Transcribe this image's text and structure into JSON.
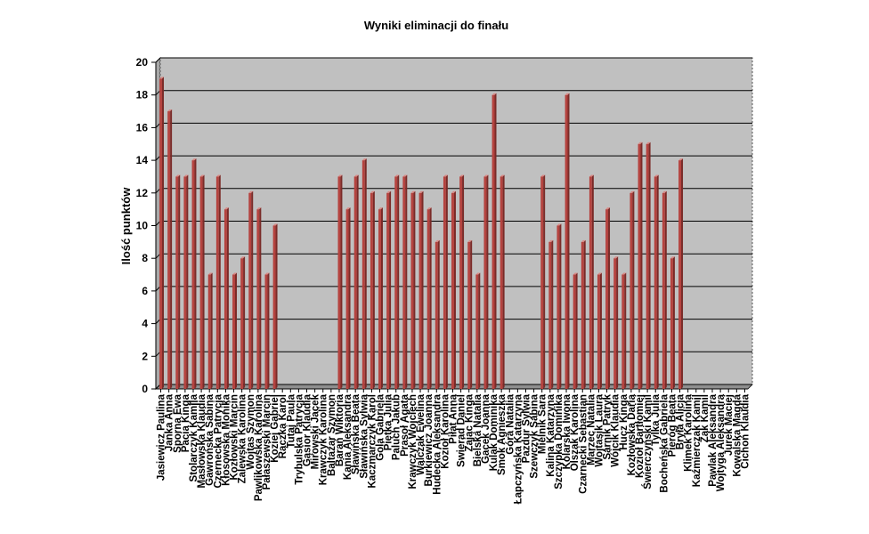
{
  "chart_data": {
    "type": "bar",
    "title": "Wyniki  eliminacji  do  finału",
    "xlabel": "",
    "ylabel": "Ilość punktów",
    "ylim": [
      0,
      20
    ],
    "yticks": [
      0,
      2,
      4,
      6,
      8,
      10,
      12,
      14,
      16,
      18,
      20
    ],
    "grid": true,
    "legend": "none",
    "colors": {
      "bar": "#b5433f",
      "bar_light": "#d88a86",
      "plot_bg": "#c0c0c0"
    },
    "categories": [
      "Jasiewicz Paulina",
      "Janka Anna",
      "Sporna Ewa",
      "Pacia Kinga",
      "Stolarczyk Kamila",
      "Masłowska Klaudia",
      "Gawrońska Sabina",
      "Czernecka Patrycja",
      "Kłosowska Monika",
      "Kozłowski Marcin",
      "Zalewska Karolina",
      "Wojtas Szymon",
      "Pawlikowska Karolina",
      "Pałaszewski Marcin",
      "Koziej Gabriel",
      "Rączka Karol",
      "Tutaj Paula",
      "Trybulska Patrycja",
      "Gąsior Klaudia",
      "Mirowski Jacek",
      "Krawczyk Karolina",
      "Baltazar Szymon",
      "Barań Wiktoria",
      "Kania Aleksandra",
      "Sławińska Beata",
      "Sławińska Sylwia",
      "Kaczmarczyk Karol",
      "Gola Gabriela",
      "Piętka Julia",
      "Paluch Jakub",
      "Prasoł Agata",
      "Krawczyk Wojciech",
      "Walczak Ewelina",
      "Burkiewicz Joanna",
      "Hudecka Aleksandra",
      "Kozioł Karolina",
      "Piłat Anna",
      "Swierad Daniel",
      "Zając Kinga",
      "Bielska Natalia",
      "Gacek Joanna",
      "Kulak Dominika",
      "Smok Agnieszka",
      "Góra Natalia",
      "Łapczyńska Katarzyna",
      "Pazdur Sylwia",
      "Szewczyk Sabina",
      "Mielnik Sara",
      "Kalina Katarzyna",
      "Szczypka Dominika",
      "Kolarska Iwona",
      "Olszak Karolina",
      "Czarnecki Sebastian",
      "Marzec Natalia",
      "Wojtasik Laura",
      "Sarnik Patryk",
      "Wójcik Klaudia",
      "Hucz Kinga",
      "Kozłowska Daria",
      "Kozioł Bartłomiej",
      "Świerczyński Kamil",
      "Tylka Julia",
      "Bocheńska Gabriela",
      "Pieróg Beata",
      "Bryła Alicja",
      "Klimek Karolina",
      "Kaźmierczak Kamil",
      "Żak Kamil",
      "Pawlak Aleksandra",
      "Wojtyga Aleksandra",
      "Jurek Maciej",
      "Kowalska Magda",
      "Cichoń Klaudia"
    ],
    "values": [
      19,
      17,
      13,
      13,
      14,
      13,
      7,
      13,
      11,
      7,
      8,
      12,
      11,
      7,
      10,
      0,
      0,
      0,
      0,
      0,
      0,
      0,
      13,
      11,
      13,
      14,
      12,
      11,
      12,
      13,
      13,
      12,
      12,
      11,
      9,
      13,
      12,
      13,
      9,
      7,
      13,
      18,
      13,
      0,
      0,
      0,
      0,
      13,
      9,
      10,
      18,
      7,
      9,
      13,
      7,
      11,
      8,
      7,
      12,
      15,
      15,
      13,
      12,
      8,
      14,
      0,
      0,
      0,
      0,
      0,
      0,
      0,
      0
    ],
    "visible_label_text": [
      "Jasiewicz Paulina",
      "Janka Anna",
      "Sporna Ewa",
      "Pacia Kinga",
      "Stolarczyk Kamila",
      "Masłowska Klaudia",
      "Gawrońska Sabina",
      "Czernecka Patrycja",
      "Kłosowska Monika",
      "Kozłowski Marcin",
      "Zalewska Karolina",
      "Wojtas Szymon",
      "Pawlikowska Karolina",
      "Pałaszewski Marcin",
      "Koziej Gabriel",
      "Rączka Karol",
      "Tutaj Paula",
      "Trybulska Patrycja",
      "Gąsior Klaudia",
      "Mirowski Jacek",
      "Krawczyk Karolina",
      "Baltazar Szymon",
      "Barań Wiktoria",
      "Kania Aleksandra",
      "Sławińska Beata",
      "Sławińska Sylwia",
      "Kaczmarczyk Karol",
      "Gola Gabriela",
      "Piętka Julia",
      "Paluch Jakub",
      "Prasoł Agata",
      "Krawczyk Wojciech",
      "Walczak Ewelina",
      "Burkiewicz Joanna",
      "Hudecka Aleksandra",
      "Kozioł Karolina",
      "Piłat Anna",
      "Swierad Daniel",
      "Zając Kinga",
      "Bielska Natalia",
      "Gacek Joanna",
      "Kulak Dominika",
      "Smok Agnieszka",
      "Góra Natalia",
      "Łapczyńska Katarzyna",
      "Pazdur Sylwia",
      "Szewczyk Sabina",
      "Mielnik Sara",
      "Kalina Katarzyna",
      "Szczypka Dominika",
      "Kolarska Iwona",
      "Olszak Karolina",
      "Czarnecki Sebastian",
      "Marzec Natalia",
      "Wojtasik Laura",
      "Sarnik Patryk",
      "Wójcik Klaudia",
      "Hucz Kinga",
      "Kozłowska Daria",
      "Kozioł Bartłomiej",
      "Świerczyński Kamil",
      "Tylka Julia",
      "Bocheńska Gabriela",
      "Pieróg Beata",
      "Bryła Alicja",
      "Klimek Karolina",
      "Kaźmierczak Kamil",
      "Żak Kamil",
      "Pawlak Aleksandra",
      "Wojtyga Aleksandra",
      "Jurek Maciej",
      "Kowalska Magda",
      "Cichoń Klaudia"
    ]
  }
}
